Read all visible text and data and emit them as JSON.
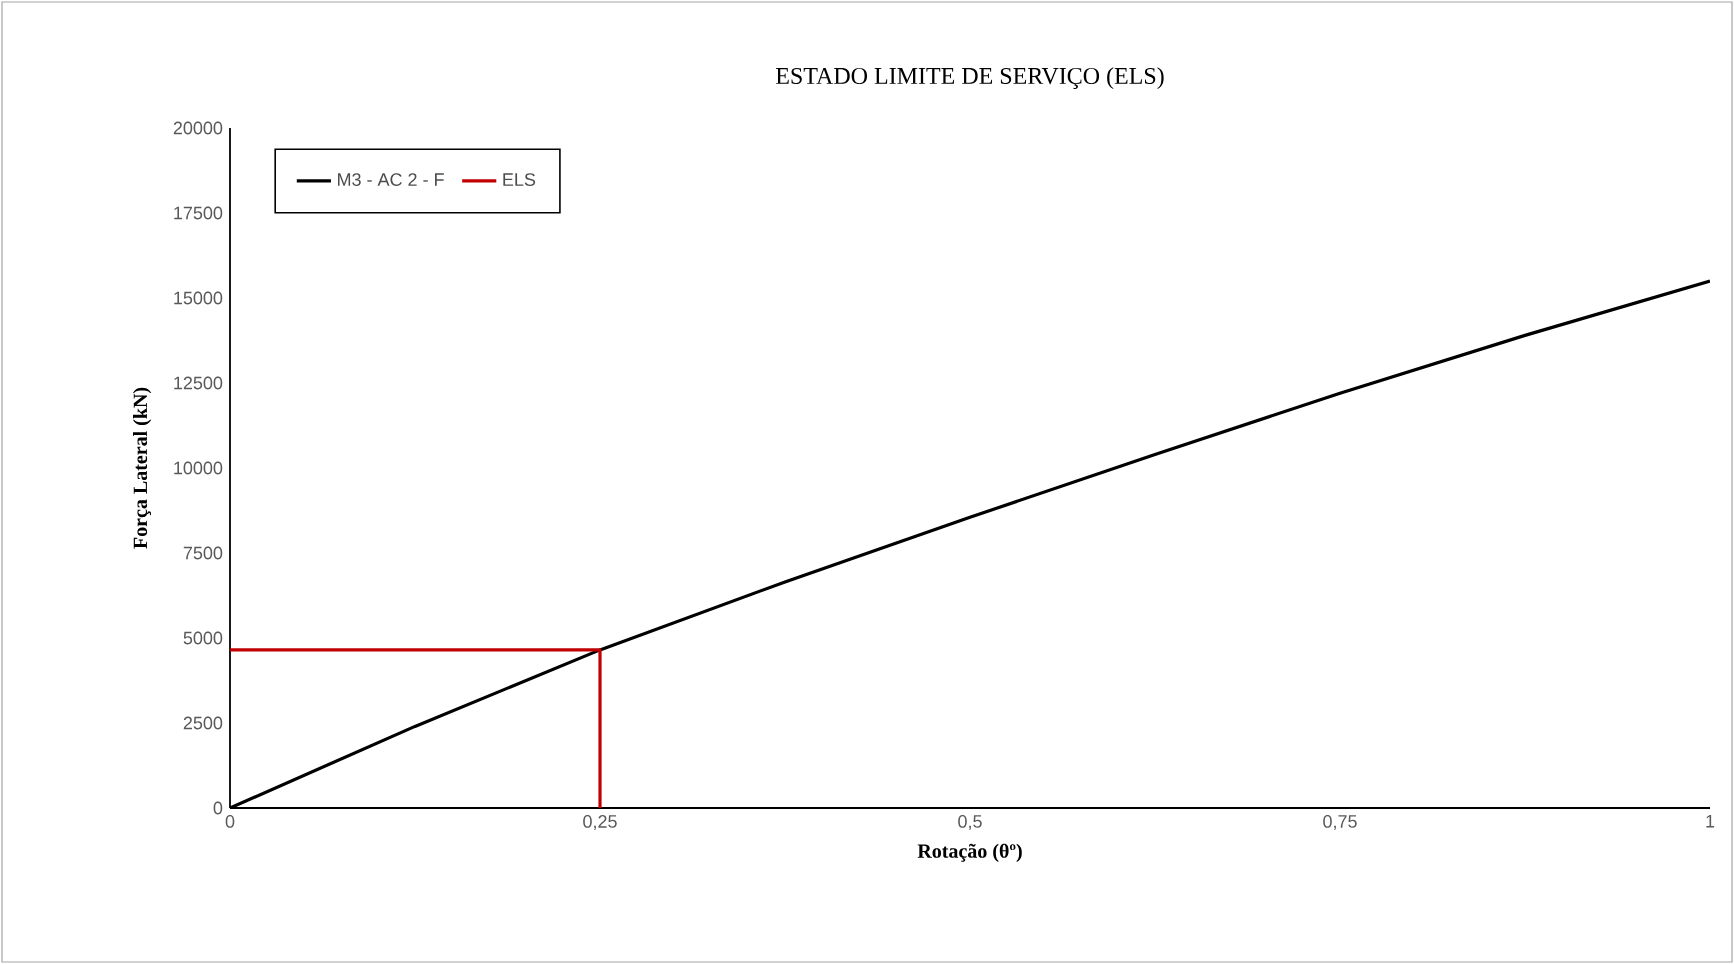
{
  "chart_data": {
    "type": "line",
    "title": "ESTADO LIMITE DE SERVIÇO (ELS)",
    "xlabel": "Rotação (θº)",
    "ylabel": "Força Lateral (kN)",
    "xlim": [
      0,
      1
    ],
    "xticks": [
      0,
      {
        "value": 0.25,
        "label": "0,25"
      },
      {
        "value": 0.5,
        "label": "0,5"
      },
      {
        "value": 0.75,
        "label": "0,75"
      },
      1
    ],
    "ylim": [
      0,
      20000
    ],
    "yticks": [
      0,
      2500,
      5000,
      7500,
      10000,
      12500,
      15000,
      17500,
      20000
    ],
    "grid": false,
    "legend": "top left",
    "marker": "none",
    "line_style": "solid",
    "series": [
      {
        "name": "M3 - AC 2 - F",
        "color": "#000000",
        "x": [
          0,
          0.125,
          0.25,
          0.375,
          0.5,
          0.625,
          0.75,
          0.875,
          1
        ],
        "values": [
          0,
          2400,
          4650,
          6650,
          8550,
          10400,
          12200,
          13900,
          15500
        ]
      },
      {
        "name": "ELS",
        "color": "#c00000",
        "x": [
          0,
          0.25,
          0.25
        ],
        "values": [
          4650,
          4650,
          0
        ]
      }
    ]
  }
}
